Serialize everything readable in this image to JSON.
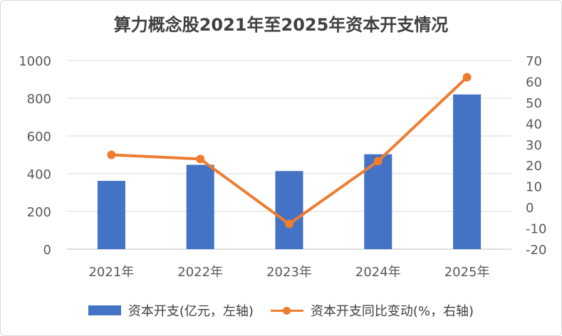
{
  "chart_data": {
    "type": "bar+line",
    "title": "算力概念股2021年至2025年资本开支情况",
    "categories": [
      "2021年",
      "2022年",
      "2023年",
      "2024年",
      "2025年"
    ],
    "series": [
      {
        "name": "资本开支(亿元，左轴)",
        "type": "bar",
        "axis": "left",
        "color": "#4472c4",
        "values": [
          362,
          447,
          414,
          503,
          820
        ]
      },
      {
        "name": "资本开支同比变动(%，右轴)",
        "type": "line",
        "axis": "right",
        "color": "#ed7d31",
        "values": [
          25,
          23,
          -8,
          22,
          62
        ]
      }
    ],
    "y_left": {
      "min": 0,
      "max": 1000,
      "ticks": [
        "0",
        "200",
        "400",
        "600",
        "800",
        "1000"
      ]
    },
    "y_right": {
      "min": -20,
      "max": 70,
      "ticks": [
        "-20",
        "-10",
        "0",
        "10",
        "20",
        "30",
        "40",
        "50",
        "60",
        "70"
      ]
    },
    "grid": true,
    "legend_position": "bottom"
  }
}
